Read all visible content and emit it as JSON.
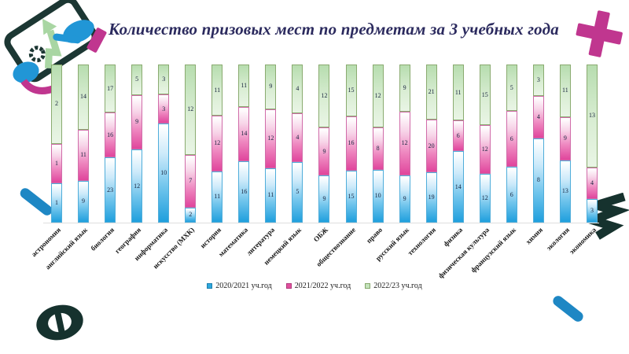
{
  "chart_data": {
    "type": "bar",
    "stacked": "100%",
    "title": "Количество призовых мест по предметам за 3 учебных года",
    "categories": [
      "астрономия",
      "английский язык",
      "биология",
      "география",
      "информатика",
      "искусство (МХК)",
      "история",
      "математика",
      "литература",
      "немецкий язык",
      "ОБЖ",
      "обществознание",
      "право",
      "русский язык",
      "технология",
      "физика",
      "физическая культура",
      "французский язык",
      "химия",
      "экология",
      "экономика"
    ],
    "series": [
      {
        "name": "2020/2021 уч.год",
        "color": "#29a9e1",
        "values": [
          1,
          9,
          23,
          12,
          10,
          2,
          11,
          16,
          11,
          5,
          9,
          15,
          10,
          9,
          19,
          14,
          12,
          6,
          8,
          13,
          3
        ]
      },
      {
        "name": "2021/2022 уч.год",
        "color": "#e0519e",
        "values": [
          1,
          11,
          16,
          9,
          3,
          7,
          12,
          14,
          12,
          4,
          9,
          16,
          8,
          12,
          20,
          6,
          12,
          6,
          4,
          9,
          4
        ]
      },
      {
        "name": "2022/23 уч.год",
        "color": "#c4e3bc",
        "values": [
          2,
          14,
          17,
          5,
          3,
          12,
          11,
          11,
          9,
          4,
          12,
          15,
          12,
          9,
          21,
          11,
          15,
          5,
          3,
          11,
          13
        ]
      }
    ],
    "value_labels": "inside-segments",
    "legend_position": "bottom-center",
    "axes": {
      "y_axis_visible": false,
      "gridlines": false,
      "x_labels_rotation_deg": 45
    },
    "title_color": "#2b2a5e"
  },
  "decor": {
    "icons": [
      "tablet-growth-clipart",
      "magenta-plus-shape",
      "blue-dash-left",
      "dark-zigzag-arrow",
      "dark-f-ellipse",
      "blue-dash-bottom-right"
    ],
    "colors": {
      "dark_teal": "#16322e",
      "magenta": "#c0368f",
      "blue": "#1e87c4",
      "light_green": "#a9d6a3",
      "hand_blue": "#2196d6"
    }
  }
}
